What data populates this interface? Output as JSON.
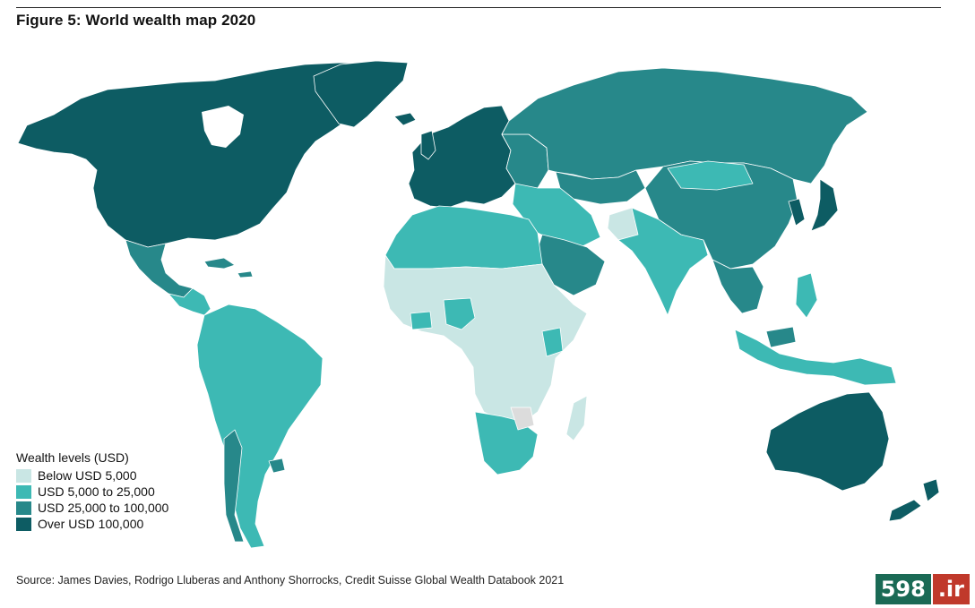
{
  "title": "Figure 5: World wealth map 2020",
  "legend": {
    "title": "Wealth levels (USD)",
    "items": [
      {
        "label": "Below USD 5,000",
        "color": "#c9e6e4"
      },
      {
        "label": "USD 5,000 to 25,000",
        "color": "#3db9b4"
      },
      {
        "label": "USD 25,000 to 100,000",
        "color": "#27888a"
      },
      {
        "label": "Over USD 100,000",
        "color": "#0d5c63"
      }
    ]
  },
  "source": "Source: James Davies, Rodrigo Lluberas and Anthony Shorrocks, Credit Suisse Global Wealth Databook 2021",
  "watermark": {
    "number": "598",
    "ext": ".ir"
  },
  "colors": {
    "background": "#ffffff",
    "border": "#ffffff",
    "no_data": "#dcdcdc"
  }
}
